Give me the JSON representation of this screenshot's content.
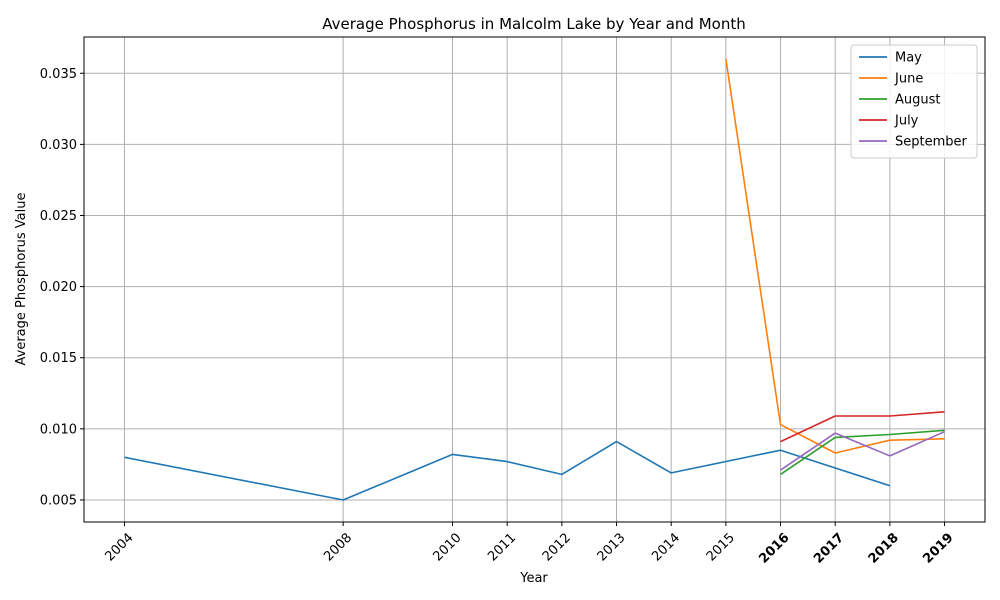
{
  "chart_data": {
    "type": "line",
    "title": "Average Phosphorus in Malcolm Lake by Year and Month",
    "xlabel": "Year",
    "ylabel": "Average Phosphorus Value",
    "xlim": [
      2003.26,
      2019.74
    ],
    "ylim": [
      0.00345,
      0.03755
    ],
    "x_ticks": [
      2004,
      2008,
      2010,
      2011,
      2012,
      2013,
      2014,
      2015,
      2016,
      2017,
      2018,
      2019
    ],
    "x_tick_labels": [
      "2004",
      "2008",
      "2010",
      "2011",
      "2012",
      "2013",
      "2014",
      "2015",
      "2016",
      "2017",
      "2018",
      "2019"
    ],
    "x_bold_ticks": [
      "2016",
      "2017",
      "2018",
      "2019"
    ],
    "y_ticks": [
      0.005,
      0.01,
      0.015,
      0.02,
      0.025,
      0.03,
      0.035
    ],
    "y_tick_labels": [
      "0.005",
      "0.010",
      "0.015",
      "0.020",
      "0.025",
      "0.030",
      "0.035"
    ],
    "grid": true,
    "legend_position": "top-right",
    "series": [
      {
        "name": "May",
        "color": "#1f77b4",
        "x": [
          2004,
          2008,
          2010,
          2011,
          2012,
          2013,
          2014,
          2016,
          2018
        ],
        "y": [
          0.008,
          0.005,
          0.0082,
          0.0077,
          0.0068,
          0.0091,
          0.0069,
          0.0085,
          0.006
        ]
      },
      {
        "name": "June",
        "color": "#ff7f0e",
        "x": [
          2015,
          2016,
          2017,
          2018,
          2019
        ],
        "y": [
          0.036,
          0.0103,
          0.0083,
          0.0092,
          0.0093
        ]
      },
      {
        "name": "August",
        "color": "#2ca02c",
        "x": [
          2016,
          2017,
          2018,
          2019
        ],
        "y": [
          0.0068,
          0.0094,
          0.0096,
          0.0099
        ]
      },
      {
        "name": "July",
        "color": "#d62728",
        "x": [
          2016,
          2017,
          2018,
          2019
        ],
        "y": [
          0.0091,
          0.0109,
          0.0109,
          0.0112
        ]
      },
      {
        "name": "September",
        "color": "#9467bd",
        "x": [
          2016,
          2017,
          2018,
          2019
        ],
        "y": [
          0.0071,
          0.0097,
          0.0081,
          0.0098
        ]
      }
    ]
  }
}
